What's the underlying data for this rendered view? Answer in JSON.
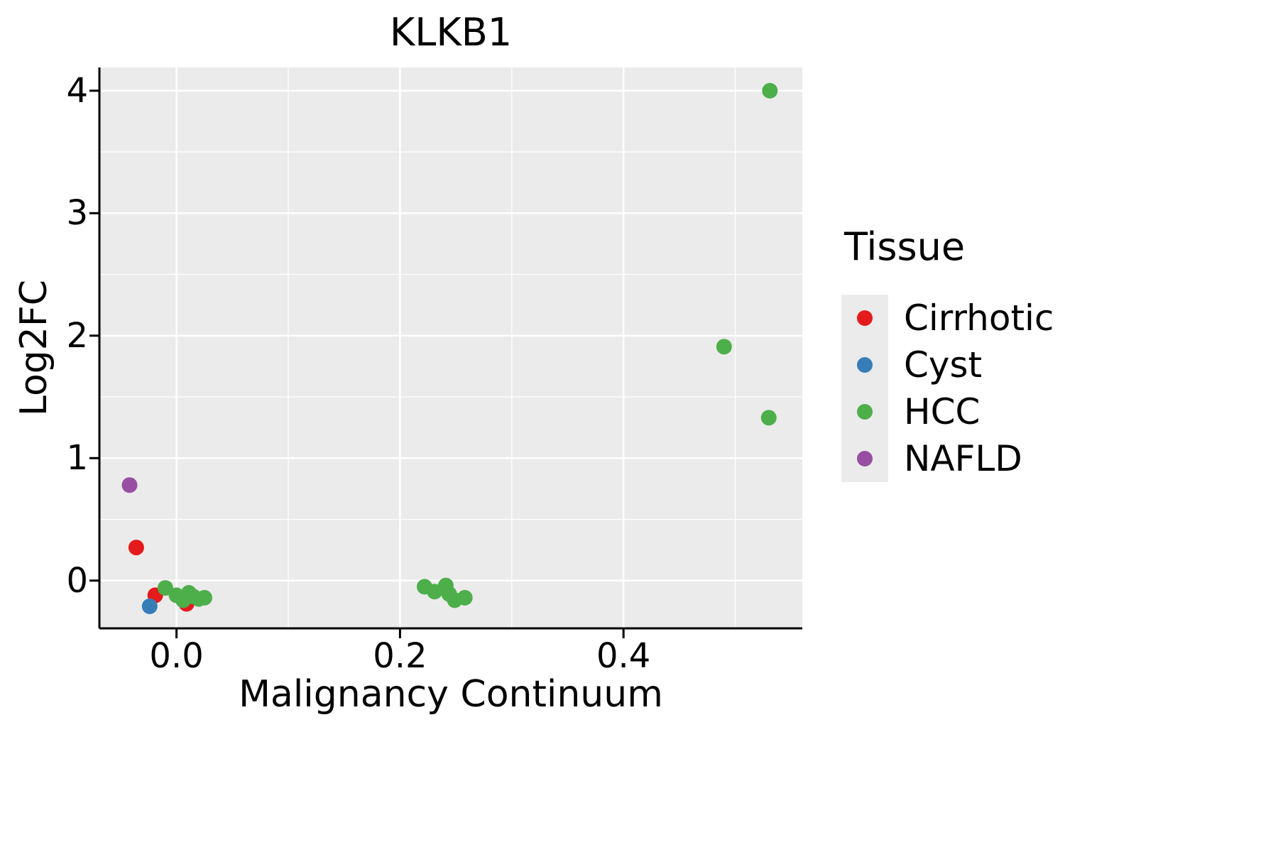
{
  "title": "KLKB1",
  "axes": {
    "xlabel": "Malignancy Continuum",
    "ylabel": "Log2FC"
  },
  "colors": {
    "cirrhotic": "#e41a1c",
    "cyst": "#377eb8",
    "hcc": "#4daf4a",
    "nafld": "#984ea3",
    "panel_bg": "#ebebeb",
    "grid": "#ffffff",
    "axis": "#000000",
    "legend_key_bg": "#ebebeb"
  },
  "legend": {
    "title": "Tissue",
    "entries": [
      {
        "label": "Cirrhotic",
        "color": "#e41a1c"
      },
      {
        "label": "Cyst",
        "color": "#377eb8"
      },
      {
        "label": "HCC",
        "color": "#4daf4a"
      },
      {
        "label": "NAFLD",
        "color": "#984ea3"
      }
    ]
  },
  "chart_data": {
    "type": "scatter",
    "title": "KLKB1",
    "xlabel": "Malignancy Continuum",
    "ylabel": "Log2FC",
    "xlim": [
      -0.069,
      0.56
    ],
    "ylim": [
      -0.39,
      4.19
    ],
    "grid": true,
    "legend_position": "right",
    "x_ticks": [
      {
        "value": 0.0,
        "label": "0.0"
      },
      {
        "value": 0.2,
        "label": "0.2"
      },
      {
        "value": 0.4,
        "label": "0.4"
      }
    ],
    "y_ticks": [
      {
        "value": 0,
        "label": "0"
      },
      {
        "value": 1,
        "label": "1"
      },
      {
        "value": 2,
        "label": "2"
      },
      {
        "value": 3,
        "label": "3"
      },
      {
        "value": 4,
        "label": "4"
      }
    ],
    "x_minor": [
      0.1,
      0.3,
      0.5
    ],
    "y_minor": [
      0.5,
      1.5,
      2.5,
      3.5
    ],
    "series": [
      {
        "name": "Cirrhotic",
        "color": "#e41a1c",
        "points": [
          [
            -0.036,
            0.27
          ],
          [
            -0.019,
            -0.12
          ],
          [
            0.009,
            -0.19
          ]
        ]
      },
      {
        "name": "Cyst",
        "color": "#377eb8",
        "points": [
          [
            -0.024,
            -0.21
          ]
        ]
      },
      {
        "name": "HCC",
        "color": "#4daf4a",
        "points": [
          [
            -0.01,
            -0.06
          ],
          [
            0.0,
            -0.12
          ],
          [
            0.006,
            -0.16
          ],
          [
            0.011,
            -0.1
          ],
          [
            0.015,
            -0.13
          ],
          [
            0.02,
            -0.15
          ],
          [
            0.025,
            -0.14
          ],
          [
            0.222,
            -0.05
          ],
          [
            0.231,
            -0.09
          ],
          [
            0.241,
            -0.04
          ],
          [
            0.244,
            -0.11
          ],
          [
            0.249,
            -0.16
          ],
          [
            0.258,
            -0.14
          ],
          [
            0.49,
            1.91
          ],
          [
            0.53,
            1.33
          ],
          [
            0.531,
            4.0
          ]
        ]
      },
      {
        "name": "NAFLD",
        "color": "#984ea3",
        "points": [
          [
            -0.042,
            0.78
          ]
        ]
      }
    ]
  }
}
